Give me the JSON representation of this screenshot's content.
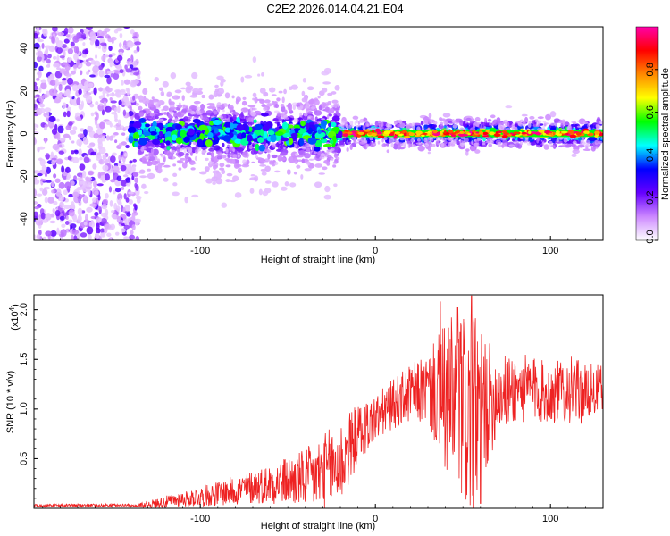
{
  "title": "C2E2.2026.014.04.21.E04",
  "colors": {
    "snr_line": "#ee2222",
    "frame": "#000000",
    "background": "#ffffff"
  },
  "chart_data": [
    {
      "type": "heatmap",
      "name": "spectrogram",
      "xlabel": "Height of straight line (km)",
      "ylabel": "Frequency (Hz)",
      "xlim": [
        -195,
        130
      ],
      "ylim": [
        -50,
        50
      ],
      "x_ticks": [
        -100,
        0,
        100
      ],
      "y_ticks": [
        -40,
        -20,
        0,
        20,
        40
      ],
      "colorbar": {
        "label": "Normalized spectral amplitude",
        "range": [
          0,
          1
        ],
        "ticks": [
          "0.0",
          "0.2",
          "0.4",
          "0.6",
          "0.8"
        ],
        "tick_values": [
          0.0,
          0.2,
          0.4,
          0.6,
          0.8
        ],
        "colormap": [
          "#ffffff",
          "#cc88ff",
          "#6600ff",
          "#0000ff",
          "#00ffff",
          "#00ff00",
          "#ffff00",
          "#ff8800",
          "#ff0000",
          "#ff00aa"
        ]
      },
      "description_regions": [
        {
          "x_range": [
            -195,
            -135
          ],
          "freq_spread": 50,
          "amplitude": 0.18
        },
        {
          "x_range": [
            -135,
            -20
          ],
          "freq_spread": 8,
          "amplitude": 0.4
        },
        {
          "x_range": [
            -20,
            130
          ],
          "freq_spread": 3,
          "amplitude": 0.85
        }
      ]
    },
    {
      "type": "line",
      "name": "snr",
      "xlabel": "Height of straight line (km)",
      "ylabel": "SNR (10 * v/v)",
      "y_multiplier": "(x10",
      "y_multiplier_exp": "4",
      "y_multiplier_close": ")",
      "xlim": [
        -195,
        130
      ],
      "ylim": [
        0,
        2.15
      ],
      "x_ticks": [
        -100,
        0,
        100
      ],
      "y_ticks": [
        "0.5",
        "1.0",
        "1.5",
        "2.0"
      ],
      "y_tick_values": [
        0.5,
        1.0,
        1.5,
        2.0
      ],
      "envelope": {
        "x": [
          -195,
          -140,
          -125,
          -100,
          -80,
          -60,
          -40,
          -30,
          -20,
          -10,
          0,
          10,
          20,
          30,
          40,
          50,
          55,
          60,
          70,
          80,
          90,
          100,
          110,
          120,
          130
        ],
        "base": [
          0.02,
          0.02,
          0.05,
          0.12,
          0.18,
          0.25,
          0.3,
          0.35,
          0.45,
          0.75,
          0.9,
          1.05,
          1.15,
          1.2,
          1.1,
          1.0,
          0.9,
          1.0,
          1.15,
          1.2,
          1.2,
          1.15,
          1.2,
          1.15,
          1.2
        ],
        "amp": [
          0.01,
          0.01,
          0.05,
          0.1,
          0.15,
          0.2,
          0.3,
          0.4,
          0.45,
          0.3,
          0.25,
          0.25,
          0.3,
          0.35,
          0.8,
          1.0,
          1.1,
          0.8,
          0.4,
          0.35,
          0.35,
          0.3,
          0.35,
          0.3,
          0.25
        ]
      },
      "peaks": [
        {
          "x": 37,
          "y": 2.08
        },
        {
          "x": 47,
          "y": 2.02
        },
        {
          "x": 55,
          "y": 2.14
        },
        {
          "x": 60,
          "y": 0.05
        }
      ]
    }
  ]
}
